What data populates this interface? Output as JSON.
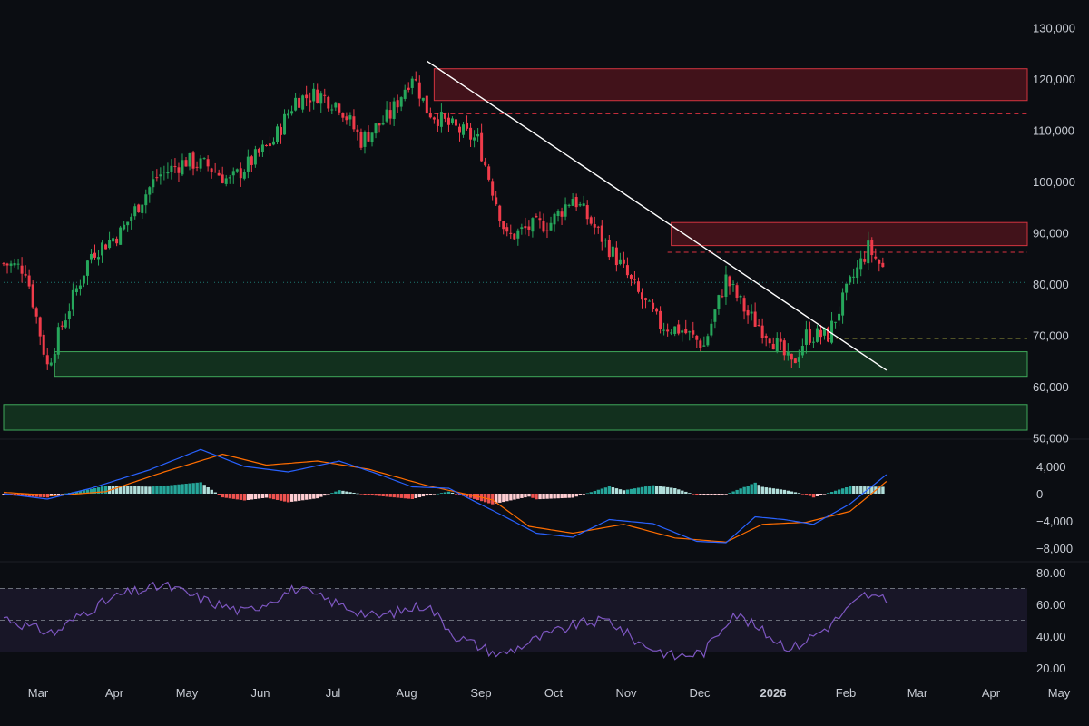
{
  "chart_data": [
    {
      "type": "candlestick",
      "panel": "price",
      "title": "",
      "xlabel": "",
      "ylabel": "",
      "ylim": [
        48000,
        132000
      ],
      "y_ticks": [
        50000,
        60000,
        70000,
        80000,
        90000,
        100000,
        110000,
        120000,
        130000
      ],
      "y_tick_labels": [
        "50,000",
        "60,000",
        "70,000",
        "80,000",
        "90,000",
        "100,000",
        "110,000",
        "120,000",
        "130,000"
      ],
      "x_labels": [
        "Mar",
        "Apr",
        "May",
        "Jun",
        "Jul",
        "Aug",
        "Sep",
        "Oct",
        "Nov",
        "Dec",
        "2026",
        "Feb",
        "Mar",
        "Apr",
        "May"
      ],
      "x_label_bold": "2026",
      "grid": false,
      "candle_count": 242,
      "close_path": [
        {
          "i": 0,
          "v": 84000
        },
        {
          "i": 6,
          "v": 83000
        },
        {
          "i": 12,
          "v": 64000
        },
        {
          "i": 16,
          "v": 72000
        },
        {
          "i": 24,
          "v": 86000
        },
        {
          "i": 32,
          "v": 90000
        },
        {
          "i": 42,
          "v": 101000
        },
        {
          "i": 50,
          "v": 104000
        },
        {
          "i": 56,
          "v": 103000
        },
        {
          "i": 62,
          "v": 100000
        },
        {
          "i": 68,
          "v": 104000
        },
        {
          "i": 74,
          "v": 108000
        },
        {
          "i": 80,
          "v": 116000
        },
        {
          "i": 86,
          "v": 117000
        },
        {
          "i": 92,
          "v": 115000
        },
        {
          "i": 98,
          "v": 108000
        },
        {
          "i": 106,
          "v": 113000
        },
        {
          "i": 112,
          "v": 121000
        },
        {
          "i": 116,
          "v": 114000
        },
        {
          "i": 122,
          "v": 111000
        },
        {
          "i": 130,
          "v": 108000
        },
        {
          "i": 138,
          "v": 89000
        },
        {
          "i": 144,
          "v": 91000
        },
        {
          "i": 150,
          "v": 92000
        },
        {
          "i": 156,
          "v": 97000
        },
        {
          "i": 162,
          "v": 91000
        },
        {
          "i": 168,
          "v": 85000
        },
        {
          "i": 174,
          "v": 78000
        },
        {
          "i": 180,
          "v": 72000
        },
        {
          "i": 186,
          "v": 71000
        },
        {
          "i": 192,
          "v": 68000
        },
        {
          "i": 198,
          "v": 81000
        },
        {
          "i": 204,
          "v": 74000
        },
        {
          "i": 210,
          "v": 70000
        },
        {
          "i": 216,
          "v": 64000
        },
        {
          "i": 220,
          "v": 70000
        },
        {
          "i": 226,
          "v": 70000
        },
        {
          "i": 232,
          "v": 80000
        },
        {
          "i": 237,
          "v": 87000
        },
        {
          "i": 241,
          "v": 83000
        }
      ],
      "zones": [
        {
          "name": "resistance",
          "color": "#f23645",
          "y1": 115800,
          "y2": 122000,
          "i_start": 118,
          "i_end": 282
        },
        {
          "name": "resistance",
          "color": "#f23645",
          "y1": 87500,
          "y2": 92000,
          "i_start": 183,
          "i_end": 282
        },
        {
          "name": "support",
          "color": "#26a69a",
          "y1": 62000,
          "y2": 66800,
          "i_start": 14,
          "i_end": 282
        },
        {
          "name": "support",
          "color": "#26a69a",
          "y1": 51500,
          "y2": 56500,
          "i_start": 0,
          "i_end": 282
        }
      ],
      "levels": [
        {
          "value": 113200,
          "color": "#f23645",
          "i_start": 118,
          "i_end": 282,
          "style": "dashed"
        },
        {
          "value": 86200,
          "color": "#f23645",
          "i_start": 182,
          "i_end": 282,
          "style": "dashed"
        },
        {
          "value": 80300,
          "color": "#26a69a",
          "i_start": 0,
          "i_end": 282,
          "style": "dotted"
        },
        {
          "value": 69400,
          "color": "#d8d850",
          "i_start": 226,
          "i_end": 282,
          "style": "dashed"
        }
      ],
      "trendline": {
        "i1": 116,
        "v1": 123500,
        "i2": 242,
        "v2": 63200,
        "color": "#ffffff"
      }
    },
    {
      "type": "macd",
      "panel": "macd",
      "ylim": [
        -9000,
        6000
      ],
      "y_ticks": [
        4000,
        0,
        -4000,
        -8000
      ],
      "y_tick_labels": [
        "4,000",
        "0",
        "−4,000",
        "−8,000"
      ],
      "macd_path": [
        {
          "i": 0,
          "v": 0
        },
        {
          "i": 12,
          "v": -800
        },
        {
          "i": 24,
          "v": 800
        },
        {
          "i": 40,
          "v": 3500
        },
        {
          "i": 54,
          "v": 6500
        },
        {
          "i": 66,
          "v": 4000
        },
        {
          "i": 78,
          "v": 3200
        },
        {
          "i": 92,
          "v": 4800
        },
        {
          "i": 102,
          "v": 3000
        },
        {
          "i": 112,
          "v": 1000
        },
        {
          "i": 122,
          "v": 800
        },
        {
          "i": 136,
          "v": -3000
        },
        {
          "i": 146,
          "v": -5800
        },
        {
          "i": 156,
          "v": -6400
        },
        {
          "i": 166,
          "v": -3800
        },
        {
          "i": 178,
          "v": -4400
        },
        {
          "i": 190,
          "v": -7000
        },
        {
          "i": 198,
          "v": -7200
        },
        {
          "i": 206,
          "v": -3400
        },
        {
          "i": 214,
          "v": -3800
        },
        {
          "i": 222,
          "v": -4500
        },
        {
          "i": 232,
          "v": -1500
        },
        {
          "i": 242,
          "v": 2800
        }
      ],
      "signal_path": [
        {
          "i": 0,
          "v": 200
        },
        {
          "i": 14,
          "v": -300
        },
        {
          "i": 28,
          "v": 300
        },
        {
          "i": 44,
          "v": 3200
        },
        {
          "i": 60,
          "v": 5800
        },
        {
          "i": 72,
          "v": 4200
        },
        {
          "i": 86,
          "v": 4800
        },
        {
          "i": 100,
          "v": 3600
        },
        {
          "i": 116,
          "v": 1200
        },
        {
          "i": 134,
          "v": -900
        },
        {
          "i": 144,
          "v": -4800
        },
        {
          "i": 156,
          "v": -5800
        },
        {
          "i": 170,
          "v": -4500
        },
        {
          "i": 184,
          "v": -6500
        },
        {
          "i": 198,
          "v": -7100
        },
        {
          "i": 208,
          "v": -4500
        },
        {
          "i": 220,
          "v": -4200
        },
        {
          "i": 232,
          "v": -2600
        },
        {
          "i": 242,
          "v": 1800
        }
      ],
      "macd_color": "#2962ff",
      "signal_color": "#ff6d00",
      "hist_up_color": "#26a69a",
      "hist_down_color": "#ef5350"
    },
    {
      "type": "rsi",
      "panel": "rsi",
      "ylim": [
        15,
        85
      ],
      "y_ticks": [
        80,
        60,
        40,
        20
      ],
      "y_tick_labels": [
        "80.00",
        "60.00",
        "40.00",
        "20.00"
      ],
      "band": [
        30,
        70
      ],
      "midline": 50,
      "rsi_path": [
        {
          "i": 0,
          "v": 52
        },
        {
          "i": 8,
          "v": 45
        },
        {
          "i": 14,
          "v": 42
        },
        {
          "i": 22,
          "v": 55
        },
        {
          "i": 32,
          "v": 66
        },
        {
          "i": 44,
          "v": 72
        },
        {
          "i": 56,
          "v": 62
        },
        {
          "i": 66,
          "v": 55
        },
        {
          "i": 80,
          "v": 70
        },
        {
          "i": 92,
          "v": 60
        },
        {
          "i": 102,
          "v": 52
        },
        {
          "i": 116,
          "v": 60
        },
        {
          "i": 124,
          "v": 40
        },
        {
          "i": 136,
          "v": 28
        },
        {
          "i": 148,
          "v": 40
        },
        {
          "i": 158,
          "v": 48
        },
        {
          "i": 166,
          "v": 50
        },
        {
          "i": 174,
          "v": 36
        },
        {
          "i": 184,
          "v": 27
        },
        {
          "i": 192,
          "v": 30
        },
        {
          "i": 200,
          "v": 55
        },
        {
          "i": 210,
          "v": 40
        },
        {
          "i": 216,
          "v": 32
        },
        {
          "i": 226,
          "v": 46
        },
        {
          "i": 236,
          "v": 66
        },
        {
          "i": 242,
          "v": 62
        }
      ],
      "line_color": "#7e57c2"
    }
  ]
}
